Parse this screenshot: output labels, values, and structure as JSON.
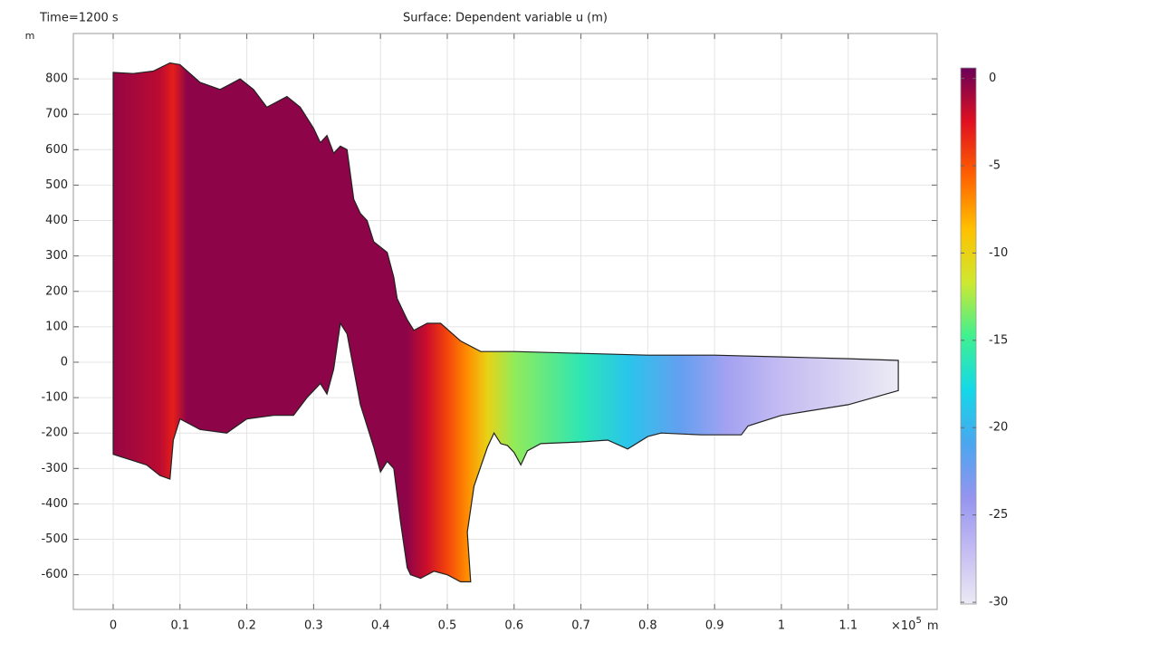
{
  "chart_data": {
    "type": "surface",
    "title": "Surface: Dependent variable u (m)",
    "time_label": "Time=1200 s",
    "y_unit": "m",
    "x_unit": "m",
    "x_multiplier": "×10",
    "x_exponent": "5",
    "xlim": [
      -0.0596,
      1.2331
    ],
    "ylim": [
      -698,
      928
    ],
    "xticks": [
      0,
      0.1,
      0.2,
      0.3,
      0.4,
      0.5,
      0.6,
      0.7,
      0.8,
      0.9,
      1,
      1.1
    ],
    "yticks": [
      -600,
      -500,
      -400,
      -300,
      -200,
      -100,
      0,
      100,
      200,
      300,
      400,
      500,
      600,
      700,
      800
    ],
    "grid": true,
    "boundary": {
      "x": [
        0,
        0.03,
        0.06,
        0.085,
        0.1,
        0.13,
        0.16,
        0.19,
        0.21,
        0.23,
        0.26,
        0.28,
        0.3,
        0.31,
        0.32,
        0.33,
        0.34,
        0.35,
        0.36,
        0.37,
        0.38,
        0.39,
        0.41,
        0.42,
        0.425,
        0.44,
        0.45,
        0.47,
        0.49,
        0.52,
        0.55,
        0.6,
        0.7,
        0.8,
        0.9,
        1.0,
        1.1,
        1.175,
        1.175,
        1.1,
        1.0,
        0.95,
        0.94,
        0.88,
        0.82,
        0.8,
        0.77,
        0.74,
        0.7,
        0.64,
        0.62,
        0.61,
        0.6,
        0.59,
        0.58,
        0.57,
        0.56,
        0.54,
        0.53,
        0.535,
        0.52,
        0.5,
        0.48,
        0.46,
        0.445,
        0.44,
        0.43,
        0.42,
        0.41,
        0.4,
        0.39,
        0.37,
        0.35,
        0.34,
        0.33,
        0.32,
        0.31,
        0.3,
        0.29,
        0.27,
        0.24,
        0.2,
        0.17,
        0.13,
        0.1,
        0.09,
        0.085,
        0.07,
        0.05,
        0
      ],
      "y": [
        818,
        815,
        822,
        845,
        840,
        790,
        770,
        800,
        770,
        720,
        750,
        720,
        660,
        620,
        640,
        590,
        610,
        600,
        460,
        420,
        400,
        340,
        310,
        240,
        180,
        120,
        90,
        110,
        110,
        60,
        30,
        30,
        25,
        20,
        20,
        15,
        10,
        5,
        -80,
        -120,
        -150,
        -180,
        -205,
        -205,
        -200,
        -210,
        -245,
        -220,
        -225,
        -230,
        -250,
        -290,
        -255,
        -235,
        -230,
        -200,
        -240,
        -350,
        -480,
        -620,
        -620,
        -600,
        -590,
        -610,
        -600,
        -580,
        -450,
        -300,
        -280,
        -310,
        -240,
        -120,
        80,
        110,
        -20,
        -90,
        -60,
        -80,
        -100,
        -150,
        -150,
        -160,
        -200,
        -190,
        -160,
        -220,
        -330,
        -320,
        -290,
        -260
      ]
    },
    "u_profile": {
      "x": [
        0,
        0.07,
        0.09,
        0.11,
        0.44,
        0.47,
        0.5,
        0.53,
        0.56,
        0.6,
        0.7,
        0.77,
        0.85,
        0.92,
        1.0,
        1.17
      ],
      "u": [
        -0.5,
        -1.5,
        -3,
        -0.3,
        -0.3,
        -2,
        -4.5,
        -7,
        -10,
        -13,
        -16,
        -19,
        -22,
        -25,
        -27,
        -30
      ]
    },
    "clim": [
      -30.1,
      0.6
    ],
    "cticks": [
      -30,
      -25,
      -20,
      -15,
      -10,
      -5,
      0
    ],
    "colormap": [
      "#eceaf4",
      "#c4bcf2",
      "#9494f0",
      "#4aa6f0",
      "#14d8e8",
      "#40f090",
      "#cfe830",
      "#ffc000",
      "#ff6000",
      "#e01020",
      "#6a0058"
    ]
  }
}
